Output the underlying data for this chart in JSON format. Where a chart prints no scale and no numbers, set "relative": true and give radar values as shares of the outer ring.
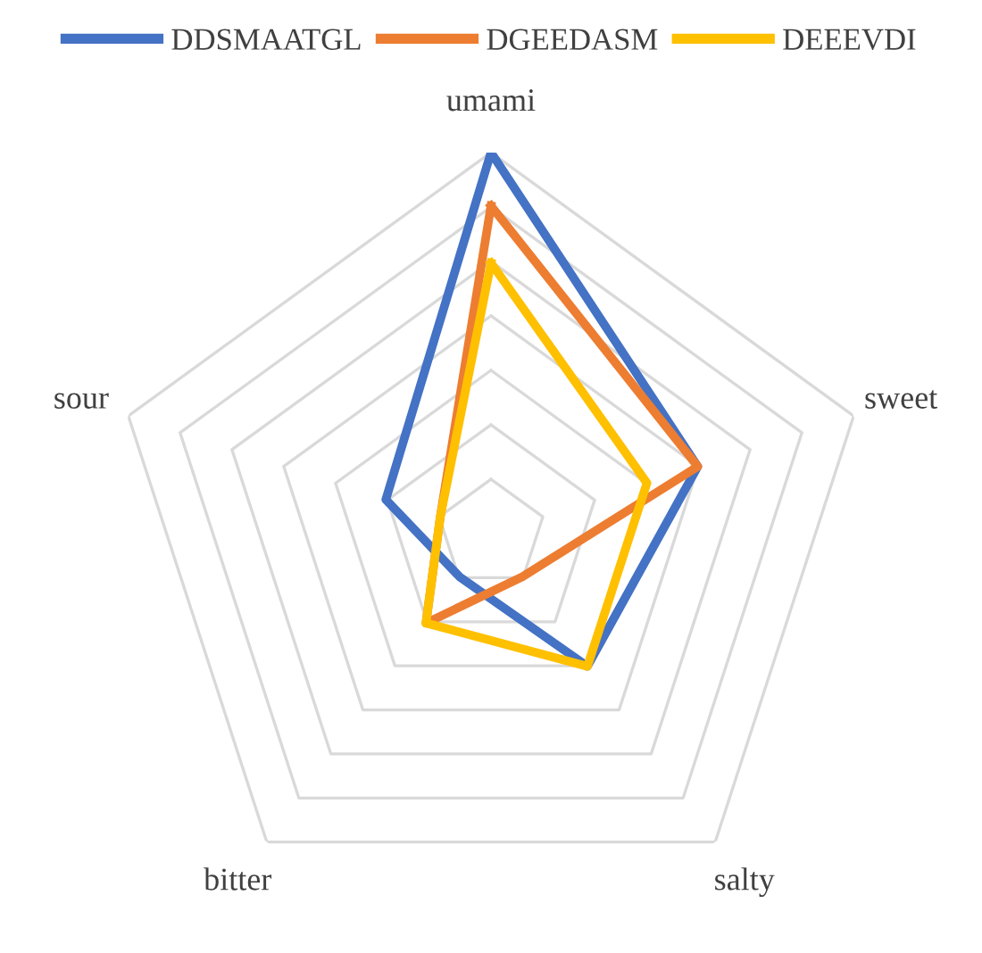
{
  "chart_data": {
    "type": "radar",
    "relative": true,
    "categories": [
      "umami",
      "sweet",
      "salty",
      "bitter",
      "sour"
    ],
    "legend": "top",
    "series": [
      {
        "name": "DDSMAATGL",
        "color": "#4472c4",
        "values": [
          1,
          0.57,
          0.43,
          0.14,
          0.29
        ]
      },
      {
        "name": "DGEEDASM",
        "color": "#ed7d31",
        "values": [
          0.86,
          0.57,
          0.14,
          0.29,
          0.14
        ]
      },
      {
        "name": "DEEEVDI",
        "color": "#ffc000",
        "values": [
          0.71,
          0.43,
          0.43,
          0.29,
          0.14
        ]
      }
    ]
  }
}
